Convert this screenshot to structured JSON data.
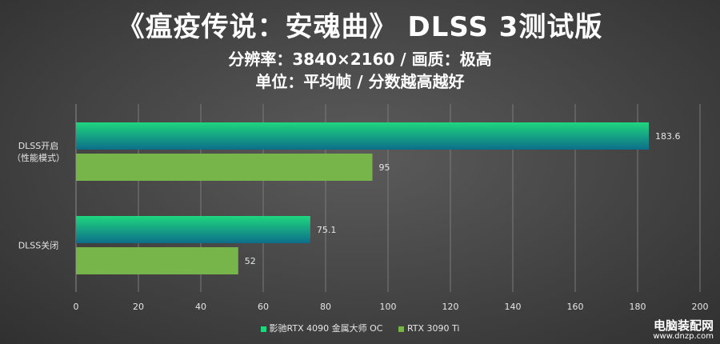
{
  "header": {
    "title": "《瘟疫传说：安魂曲》 DLSS 3测试版",
    "subtitle_line1": "分辨率：3840×2160 / 画质：极高",
    "subtitle_line2": "单位：平均帧 / 分数越高越好"
  },
  "watermark": {
    "name": "电脑装配网",
    "url": "www.dnzp.com"
  },
  "chart_data": {
    "type": "bar",
    "orientation": "horizontal",
    "categories": [
      "DLSS开启\n（性能模式）",
      "DLSS关闭"
    ],
    "category_lines": [
      [
        "DLSS开启",
        "（性能模式）"
      ],
      [
        "DLSS关闭"
      ]
    ],
    "series": [
      {
        "name": "影驰RTX 4090 金属大师 OC",
        "values": [
          183.6,
          75.1
        ],
        "labels": [
          "183.6",
          "75.1"
        ],
        "color": "#1fd67e",
        "color_dark": "#0d6e8a"
      },
      {
        "name": "RTX 3090 Ti",
        "values": [
          95,
          52
        ],
        "labels": [
          "95",
          "52"
        ],
        "color": "#77b54a"
      }
    ],
    "x_ticks": [
      "0",
      "20",
      "40",
      "60",
      "80",
      "100",
      "120",
      "140",
      "160",
      "180",
      "200"
    ],
    "xlim": [
      0,
      200
    ],
    "grid": "vertical",
    "legend": "bottom-center",
    "background": "#4a4a4a"
  }
}
